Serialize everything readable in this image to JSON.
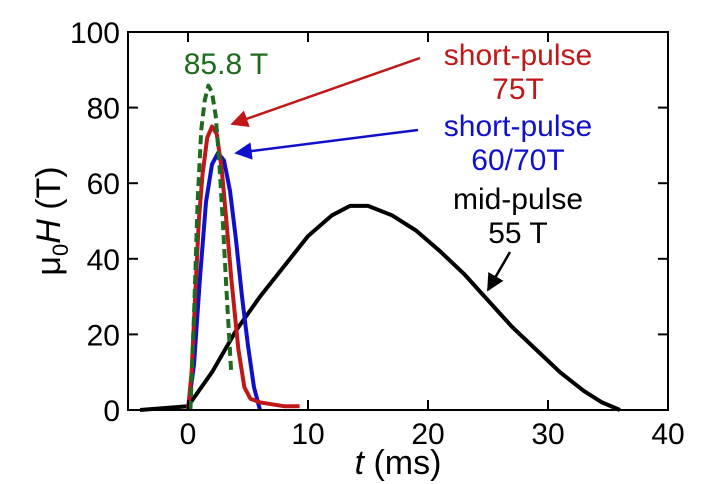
{
  "chart_data": {
    "type": "line",
    "xlabel": {
      "var": "t",
      "unit": " (ms)"
    },
    "ylabel": {
      "mu": "μ",
      "sub": "0",
      "var": "H",
      "unit": " (T)"
    },
    "xlim": [
      -5,
      40
    ],
    "ylim": [
      0,
      100
    ],
    "xticks": [
      0,
      10,
      20,
      30,
      40
    ],
    "yticks": [
      0,
      20,
      40,
      60,
      80,
      100
    ],
    "grid": false,
    "series": [
      {
        "key": "mid",
        "color": "#000000",
        "dash": "",
        "x": [
          -4,
          0,
          2,
          4,
          6,
          8,
          10,
          12,
          13.5,
          15,
          17,
          19,
          21,
          23,
          25,
          27,
          29,
          31,
          33,
          34.5,
          36
        ],
        "y": [
          0,
          1,
          10,
          21,
          30,
          38,
          46,
          51.5,
          54,
          54,
          51.5,
          47.5,
          42,
          36,
          29,
          22,
          16,
          10,
          5,
          2,
          0
        ]
      },
      {
        "key": "short6070",
        "color": "#1010cc",
        "dash": "",
        "x": [
          0,
          0.5,
          1,
          1.5,
          2,
          2.5,
          3,
          3.5,
          4,
          4.5,
          5,
          5.5,
          6
        ],
        "y": [
          0,
          12,
          35,
          55,
          65,
          68,
          66,
          58,
          45,
          30,
          17,
          6,
          0
        ]
      },
      {
        "key": "short75",
        "color": "#c01818",
        "dash": "",
        "x": [
          0,
          0.3,
          0.6,
          0.9,
          1.2,
          1.6,
          2.0,
          2.4,
          2.8,
          3.2,
          3.6,
          4.2,
          4.7,
          5.2,
          6,
          7,
          8,
          9.3
        ],
        "y": [
          0,
          10,
          30,
          50,
          62,
          72,
          75,
          73,
          64,
          50,
          35,
          16,
          6,
          3,
          2,
          1.5,
          1,
          1
        ]
      },
      {
        "key": "peak858",
        "color": "#1e6b1e",
        "dash": "9,5",
        "x": [
          0.2,
          0.5,
          0.8,
          1.1,
          1.4,
          1.7,
          2.0,
          2.3,
          2.6,
          2.9,
          3.2,
          3.6
        ],
        "y": [
          0,
          25,
          55,
          74,
          82,
          85.8,
          84,
          78,
          66,
          50,
          32,
          10
        ]
      }
    ],
    "annotations": [
      {
        "key": "peak",
        "lines": [
          "85.8 T"
        ],
        "color": "#1e6b1e"
      },
      {
        "key": "short75",
        "lines": [
          "short-pulse",
          "75T"
        ],
        "color": "#c01818"
      },
      {
        "key": "short6070",
        "lines": [
          "short-pulse",
          "60/70T"
        ],
        "color": "#1010cc"
      },
      {
        "key": "mid",
        "lines": [
          "mid-pulse",
          "55 T"
        ],
        "color": "#000000"
      }
    ]
  }
}
